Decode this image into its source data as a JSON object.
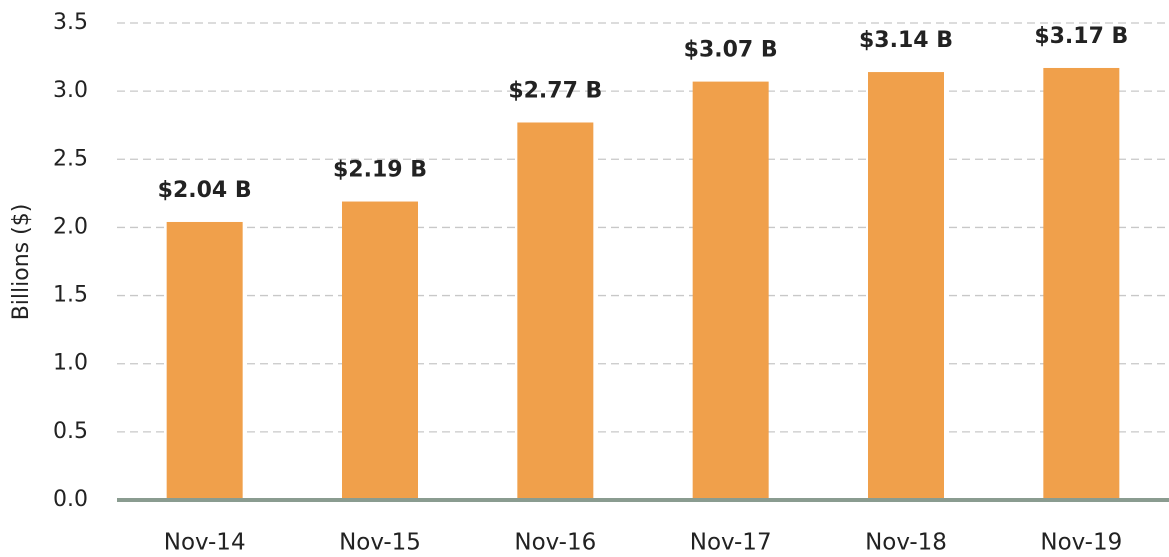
{
  "chart_data": {
    "type": "bar",
    "y_label": "Billions ($)",
    "categories": [
      "Nov-14",
      "Nov-15",
      "Nov-16",
      "Nov-17",
      "Nov-18",
      "Nov-19"
    ],
    "values": [
      2.04,
      2.19,
      2.77,
      3.07,
      3.14,
      3.17
    ],
    "value_labels": [
      "$2.04 B",
      "$2.19 B",
      "$2.77 B",
      "$3.07 B",
      "$3.14 B",
      "$3.17 B"
    ],
    "color": "#f0a04b",
    "ylim": [
      0,
      3.5
    ],
    "yticks": [
      {
        "value": 0,
        "label": "0.0"
      },
      0.5,
      {
        "value": 1,
        "label": "1.0"
      },
      1.5,
      {
        "value": 2,
        "label": "2.0"
      },
      2.5,
      {
        "value": 3,
        "label": "3.0"
      },
      3.5
    ],
    "grid": true
  }
}
